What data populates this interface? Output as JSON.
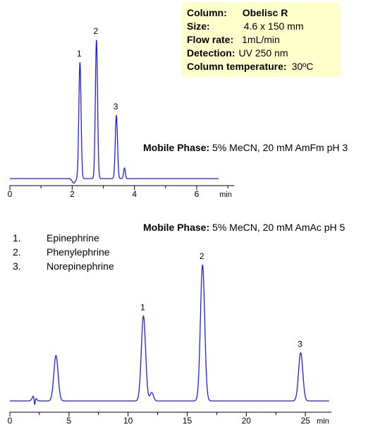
{
  "column_info": {
    "column_label": "Column:",
    "column_value": "Obelisc R",
    "size_label": "Size:",
    "size_value": "4.6 x 150 mm",
    "flow_label": "Flow rate:",
    "flow_value": "1mL/min",
    "detection_label": "Detection:",
    "detection_value": "UV 250 nm",
    "temperature_label": "Column temperature:",
    "temperature_value": "30ºC"
  },
  "legend": [
    {
      "number": "1.",
      "name": "Epinephrine"
    },
    {
      "number": "2.",
      "name": "Phenylephrine"
    },
    {
      "number": "3.",
      "name": "Norepinephrine"
    }
  ],
  "colors": {
    "trace": "#1f1fdf",
    "axis": "#000000",
    "infobox": "#ffffcc"
  },
  "chart_data": [
    {
      "type": "line",
      "mobile_phase_label": "Mobile Phase:",
      "mobile_phase_value": "5% MeCN, 20 mM AmFm pH 3",
      "x_unit": "min",
      "xlim": [
        0,
        7.2
      ],
      "x_ticks": [
        0,
        2,
        4,
        6
      ],
      "y_axis": "none (relative absorbance)",
      "baseline": 0,
      "dips": [
        {
          "t": 2.05,
          "depth": 0.03
        }
      ],
      "peaks": [
        {
          "label": "1",
          "retention_time": 2.25,
          "height": 0.77
        },
        {
          "label": "2",
          "retention_time": 2.78,
          "height": 0.92
        },
        {
          "label": "3",
          "retention_time": 3.42,
          "height": 0.42
        },
        {
          "label": "",
          "retention_time": 3.68,
          "height": 0.07
        }
      ]
    },
    {
      "type": "line",
      "mobile_phase_label": "Mobile Phase:",
      "mobile_phase_value": "5% MeCN, 20 mM AmAc pH 5",
      "x_unit": "min",
      "xlim": [
        0,
        27.2
      ],
      "x_ticks": [
        0,
        5,
        10,
        15,
        20,
        25
      ],
      "y_axis": "none (relative absorbance)",
      "baseline": 0,
      "dips": [
        {
          "t": 2.1,
          "depth": 0.06
        }
      ],
      "peaks": [
        {
          "label": "",
          "retention_time": 2.05,
          "height": 0.04
        },
        {
          "label": "",
          "retention_time": 3.9,
          "height": 0.32
        },
        {
          "label": "1",
          "retention_time": 11.3,
          "height": 0.6
        },
        {
          "label": "",
          "retention_time": 12.0,
          "height": 0.06
        },
        {
          "label": "2",
          "retention_time": 16.3,
          "height": 0.96
        },
        {
          "label": "3",
          "retention_time": 24.6,
          "height": 0.34
        }
      ]
    }
  ]
}
